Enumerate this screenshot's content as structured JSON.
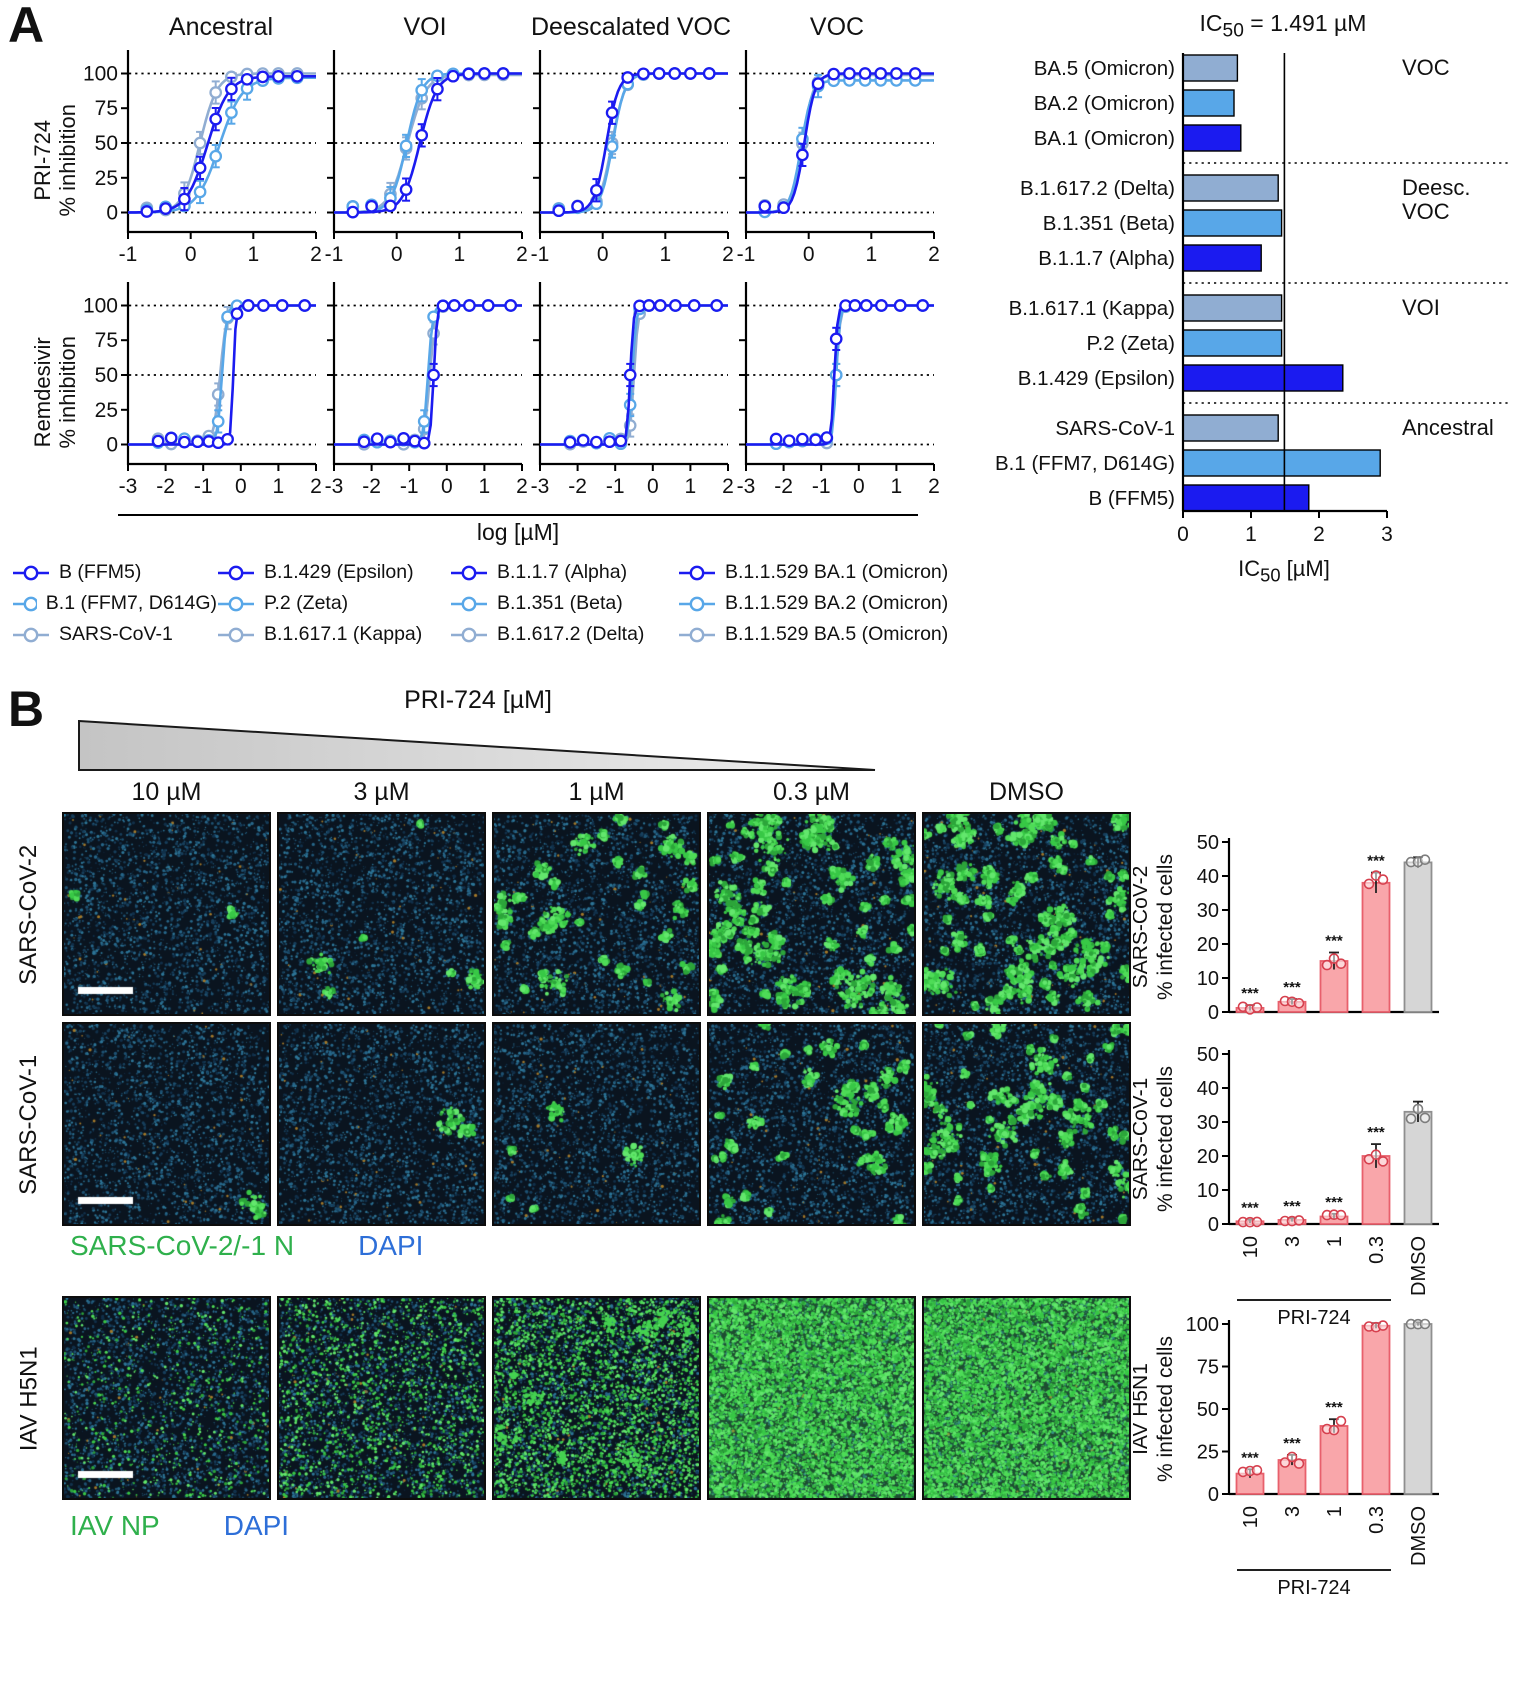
{
  "panelA": {
    "label": "A",
    "column_titles": [
      "Ancestral",
      "VOI",
      "Deescalated VOC",
      "VOC"
    ],
    "row_drugs": [
      "PRI-724",
      "Remdesivir"
    ],
    "row_ylabel": "% inhibition",
    "xaxis_label": "log [µM]",
    "series_colors": {
      "dark": "#1b1bf0",
      "mid": "#58a7e8",
      "gray": "#90add2"
    },
    "legend_columns": [
      [
        {
          "label": "B (FFM5)",
          "color": "dark"
        },
        {
          "label": "B.1 (FFM7, D614G)",
          "color": "mid"
        },
        {
          "label": "SARS-CoV-1",
          "color": "gray"
        }
      ],
      [
        {
          "label": "B.1.429 (Epsilon)",
          "color": "dark"
        },
        {
          "label": "P.2 (Zeta)",
          "color": "mid"
        },
        {
          "label": "B.1.617.1 (Kappa)",
          "color": "gray"
        }
      ],
      [
        {
          "label": "B.1.1.7 (Alpha)",
          "color": "dark"
        },
        {
          "label": "B.1.351 (Beta)",
          "color": "mid"
        },
        {
          "label": "B.1.617.2 (Delta)",
          "color": "gray"
        }
      ],
      [
        {
          "label": "B.1.1.529 BA.1 (Omicron)",
          "color": "dark"
        },
        {
          "label": "B.1.1.529 BA.2 (Omicron)",
          "color": "mid"
        },
        {
          "label": "B.1.1.529 BA.5 (Omicron)",
          "color": "gray"
        }
      ]
    ],
    "ic50_title": {
      "pre": "IC",
      "sub": "50",
      "post": " = 1.491 µM"
    },
    "ic50_xlabel": {
      "pre": "IC",
      "sub": "50",
      "post": " [µM]"
    }
  },
  "panelB": {
    "label": "B",
    "wedge_label": "PRI-724 [µM]",
    "concentration_labels": [
      "10 µM",
      "3 µM",
      "1 µM",
      "0.3 µM",
      "DMSO"
    ],
    "row_labels": [
      "SARS-CoV-2",
      "SARS-CoV-1",
      "IAV H5N1"
    ],
    "stain_captions": [
      {
        "stain": "SARS-CoV-2/-1 N",
        "stain_color": "#2fb04c",
        "counterstain": "DAPI",
        "counterstain_color": "#2e6fd8"
      },
      {
        "stain": "IAV NP",
        "stain_color": "#2fb04c",
        "counterstain": "DAPI",
        "counterstain_color": "#2e6fd8"
      }
    ],
    "bar_colors": {
      "treated_fill": "#f9a6aa",
      "treated_stroke": "#e8606c",
      "control_fill": "#d6d6d6",
      "control_stroke": "#8f8f8f"
    }
  },
  "microscopy": {
    "rows": [
      {
        "virus": "SARS-CoV-2",
        "mode": "colonies",
        "infection_levels": [
          0.015,
          0.05,
          0.28,
          0.62,
          0.68
        ]
      },
      {
        "virus": "SARS-CoV-1",
        "mode": "colonies",
        "infection_levels": [
          0.008,
          0.015,
          0.045,
          0.32,
          0.52
        ]
      },
      {
        "virus": "IAV H5N1",
        "mode": "speckle",
        "infection_levels": [
          0.1,
          0.22,
          0.45,
          0.95,
          1.0
        ]
      }
    ]
  },
  "chart_data": [
    {
      "type": "line",
      "drug": "PRI-724",
      "variant_group": "Ancestral",
      "ylabel": "% inhibition",
      "xlim": [
        -1,
        2
      ],
      "xticks": [
        -1,
        0,
        1,
        2
      ],
      "yticks": [
        0,
        25,
        50,
        75,
        100
      ],
      "ylim": [
        0,
        100
      ],
      "marker_x": [
        -0.7,
        -0.4,
        -0.1,
        0.15,
        0.4,
        0.65,
        0.9,
        1.15,
        1.4,
        1.7
      ],
      "series": [
        {
          "name": "B (FFM5)",
          "color": "dark",
          "logEC50": 0.27,
          "hill": 2.6,
          "top": 98
        },
        {
          "name": "B.1 (FFM7, D614G)",
          "color": "mid",
          "logEC50": 0.46,
          "hill": 2.4,
          "top": 97
        },
        {
          "name": "SARS-CoV-1",
          "color": "gray",
          "logEC50": 0.15,
          "hill": 3.2,
          "top": 100
        }
      ]
    },
    {
      "type": "line",
      "drug": "PRI-724",
      "variant_group": "VOI",
      "ylabel": "% inhibition",
      "xlim": [
        -1,
        2
      ],
      "xticks": [
        -1,
        0,
        1,
        2
      ],
      "yticks": [
        0,
        25,
        50,
        75,
        100
      ],
      "ylim": [
        0,
        100
      ],
      "marker_x": [
        -0.7,
        -0.4,
        -0.1,
        0.15,
        0.4,
        0.65,
        0.9,
        1.15,
        1.4,
        1.7
      ],
      "series": [
        {
          "name": "B.1.429 (Epsilon)",
          "color": "dark",
          "logEC50": 0.37,
          "hill": 3.2,
          "top": 100
        },
        {
          "name": "P.2 (Zeta)",
          "color": "mid",
          "logEC50": 0.16,
          "hill": 3.6,
          "top": 100
        },
        {
          "name": "B.1.617.1 (Kappa)",
          "color": "gray",
          "logEC50": 0.17,
          "hill": 3.0,
          "top": 99
        }
      ]
    },
    {
      "type": "line",
      "drug": "PRI-724",
      "variant_group": "Deescalated VOC",
      "ylabel": "% inhibition",
      "xlim": [
        -1,
        2
      ],
      "xticks": [
        -1,
        0,
        1,
        2
      ],
      "yticks": [
        0,
        25,
        50,
        75,
        100
      ],
      "ylim": [
        0,
        100
      ],
      "marker_x": [
        -0.7,
        -0.4,
        -0.1,
        0.15,
        0.4,
        0.65,
        0.9,
        1.15,
        1.4,
        1.7
      ],
      "series": [
        {
          "name": "B.1.1.7 (Alpha)",
          "color": "dark",
          "logEC50": 0.06,
          "hill": 4.5,
          "top": 100
        },
        {
          "name": "B.1.351 (Beta)",
          "color": "mid",
          "logEC50": 0.16,
          "hill": 4.5,
          "top": 100
        },
        {
          "name": "B.1.617.2 (Delta)",
          "color": "gray",
          "logEC50": 0.15,
          "hill": 4.2,
          "top": 100
        }
      ]
    },
    {
      "type": "line",
      "drug": "PRI-724",
      "variant_group": "VOC",
      "ylabel": "% inhibition",
      "xlim": [
        -1,
        2
      ],
      "xticks": [
        -1,
        0,
        1,
        2
      ],
      "yticks": [
        0,
        25,
        50,
        75,
        100
      ],
      "ylim": [
        0,
        100
      ],
      "marker_x": [
        -0.7,
        -0.4,
        -0.1,
        0.15,
        0.4,
        0.65,
        0.9,
        1.15,
        1.4,
        1.7
      ],
      "series": [
        {
          "name": "B.1.1.529 BA.1 (Omicron)",
          "color": "dark",
          "logEC50": -0.07,
          "hill": 5.0,
          "top": 100
        },
        {
          "name": "B.1.1.529 BA.2 (Omicron)",
          "color": "mid",
          "logEC50": -0.12,
          "hill": 5.0,
          "top": 95
        },
        {
          "name": "B.1.1.529 BA.5 (Omicron)",
          "color": "gray",
          "logEC50": -0.1,
          "hill": 5.0,
          "top": 99
        }
      ]
    },
    {
      "type": "line",
      "drug": "Remdesivir",
      "variant_group": "Ancestral",
      "ylabel": "% inhibition",
      "xlim": [
        -3,
        2
      ],
      "xticks": [
        -3,
        -2,
        -1,
        0,
        1,
        2
      ],
      "yticks": [
        0,
        25,
        50,
        75,
        100
      ],
      "ylim": [
        0,
        100
      ],
      "marker_x": [
        -2.2,
        -1.85,
        -1.5,
        -1.15,
        -0.85,
        -0.6,
        -0.35,
        -0.1,
        0.2,
        0.6,
        1.1,
        1.7
      ],
      "series": [
        {
          "name": "B (FFM5)",
          "color": "dark",
          "logEC50": -0.2,
          "hill": 12,
          "top": 100
        },
        {
          "name": "B.1 (FFM7, D614G)",
          "color": "mid",
          "logEC50": -0.5,
          "hill": 7,
          "top": 100
        },
        {
          "name": "SARS-CoV-1",
          "color": "gray",
          "logEC50": -0.55,
          "hill": 5,
          "top": 100
        }
      ]
    },
    {
      "type": "line",
      "drug": "Remdesivir",
      "variant_group": "VOI",
      "ylabel": "% inhibition",
      "xlim": [
        -3,
        2
      ],
      "xticks": [
        -3,
        -2,
        -1,
        0,
        1,
        2
      ],
      "yticks": [
        0,
        25,
        50,
        75,
        100
      ],
      "ylim": [
        0,
        100
      ],
      "marker_x": [
        -2.2,
        -1.85,
        -1.5,
        -1.15,
        -0.85,
        -0.6,
        -0.35,
        -0.1,
        0.2,
        0.6,
        1.1,
        1.7
      ],
      "series": [
        {
          "name": "B.1.429 (Epsilon)",
          "color": "dark",
          "logEC50": -0.35,
          "hill": 10,
          "top": 100
        },
        {
          "name": "P.2 (Zeta)",
          "color": "mid",
          "logEC50": -0.5,
          "hill": 7,
          "top": 100
        },
        {
          "name": "B.1.617.1 (Kappa)",
          "color": "gray",
          "logEC50": -0.45,
          "hill": 6,
          "top": 100
        }
      ]
    },
    {
      "type": "line",
      "drug": "Remdesivir",
      "variant_group": "Deescalated VOC",
      "ylabel": "% inhibition",
      "xlim": [
        -3,
        2
      ],
      "xticks": [
        -3,
        -2,
        -1,
        0,
        1,
        2
      ],
      "yticks": [
        0,
        25,
        50,
        75,
        100
      ],
      "ylim": [
        0,
        100
      ],
      "marker_x": [
        -2.2,
        -1.85,
        -1.5,
        -1.15,
        -0.85,
        -0.6,
        -0.35,
        -0.1,
        0.2,
        0.6,
        1.1,
        1.7
      ],
      "series": [
        {
          "name": "B.1.1.7 (Alpha)",
          "color": "dark",
          "logEC50": -0.6,
          "hill": 10,
          "top": 100
        },
        {
          "name": "B.1.351 (Beta)",
          "color": "mid",
          "logEC50": -0.55,
          "hill": 8,
          "top": 100
        },
        {
          "name": "B.1.617.2 (Delta)",
          "color": "gray",
          "logEC50": -0.5,
          "hill": 8,
          "top": 100
        }
      ]
    },
    {
      "type": "line",
      "drug": "Remdesivir",
      "variant_group": "VOC",
      "ylabel": "% inhibition",
      "xlim": [
        -3,
        2
      ],
      "xticks": [
        -3,
        -2,
        -1,
        0,
        1,
        2
      ],
      "yticks": [
        0,
        25,
        50,
        75,
        100
      ],
      "ylim": [
        0,
        100
      ],
      "marker_x": [
        -2.2,
        -1.85,
        -1.5,
        -1.15,
        -0.85,
        -0.6,
        -0.35,
        -0.1,
        0.2,
        0.6,
        1.1,
        1.7
      ],
      "series": [
        {
          "name": "B.1.1.529 BA.1 (Omicron)",
          "color": "dark",
          "logEC50": -0.65,
          "hill": 10,
          "top": 100
        },
        {
          "name": "B.1.1.529 BA.2 (Omicron)",
          "color": "mid",
          "logEC50": -0.6,
          "hill": 9,
          "top": 100
        },
        {
          "name": "B.1.1.529 BA.5 (Omicron)",
          "color": "gray",
          "logEC50": -0.6,
          "hill": 8,
          "top": 100
        }
      ]
    },
    {
      "type": "bar",
      "orientation": "horizontal",
      "title": "IC50 = 1.491 µM",
      "xlabel": "IC50 [µM]",
      "xlim": [
        0,
        3
      ],
      "xticks": [
        0,
        1,
        2,
        3
      ],
      "vline": 1.491,
      "groups": [
        {
          "label": "VOC",
          "bars": [
            {
              "name": "BA.5 (Omicron)",
              "value": 0.8,
              "color": "gray"
            },
            {
              "name": "BA.2 (Omicron)",
              "value": 0.75,
              "color": "mid"
            },
            {
              "name": "BA.1 (Omicron)",
              "value": 0.85,
              "color": "dark"
            }
          ]
        },
        {
          "label": "Deesc.\nVOC",
          "bars": [
            {
              "name": "B.1.617.2 (Delta)",
              "value": 1.4,
              "color": "gray"
            },
            {
              "name": "B.1.351 (Beta)",
              "value": 1.45,
              "color": "mid"
            },
            {
              "name": "B.1.1.7 (Alpha)",
              "value": 1.15,
              "color": "dark"
            }
          ]
        },
        {
          "label": "VOI",
          "bars": [
            {
              "name": "B.1.617.1 (Kappa)",
              "value": 1.45,
              "color": "gray"
            },
            {
              "name": "P.2 (Zeta)",
              "value": 1.45,
              "color": "mid"
            },
            {
              "name": "B.1.429 (Epsilon)",
              "value": 2.35,
              "color": "dark"
            }
          ]
        },
        {
          "label": "Ancestral",
          "bars": [
            {
              "name": "SARS-CoV-1",
              "value": 1.4,
              "color": "gray"
            },
            {
              "name": "B.1 (FFM7, D614G)",
              "value": 2.9,
              "color": "mid"
            },
            {
              "name": "B (FFM5)",
              "value": 1.85,
              "color": "dark"
            }
          ]
        }
      ]
    },
    {
      "type": "bar",
      "virus": "SARS-CoV-2",
      "ylabel": [
        "SARS-CoV-2",
        "% infected cells"
      ],
      "categories": [
        "10",
        "3",
        "1",
        "0.3",
        "DMSO"
      ],
      "values": [
        1.2,
        3,
        15,
        38,
        44
      ],
      "errors": [
        0.8,
        0.8,
        2.5,
        3,
        1.5
      ],
      "significance": [
        "***",
        "***",
        "***",
        "***",
        ""
      ],
      "ylim": [
        0,
        50
      ],
      "yticks": [
        0,
        10,
        20,
        30,
        40,
        50
      ],
      "control_index": 4,
      "show_xlabels": false,
      "group_label": "PRI-724"
    },
    {
      "type": "bar",
      "virus": "SARS-CoV-1",
      "ylabel": [
        "SARS-CoV-1",
        "% infected cells"
      ],
      "categories": [
        "10",
        "3",
        "1",
        "0.3",
        "DMSO"
      ],
      "values": [
        0.8,
        1.2,
        2.2,
        20,
        33
      ],
      "errors": [
        0.5,
        0.5,
        0.8,
        3.5,
        3
      ],
      "significance": [
        "***",
        "***",
        "***",
        "***",
        ""
      ],
      "ylim": [
        0,
        50
      ],
      "yticks": [
        0,
        10,
        20,
        30,
        40,
        50
      ],
      "control_index": 4,
      "show_xlabels": true,
      "group_label": "PRI-724"
    },
    {
      "type": "bar",
      "virus": "IAV H5N1",
      "ylabel": [
        "IAV H5N1",
        "% infected cells"
      ],
      "categories": [
        "10",
        "3",
        "1",
        "0.3",
        "DMSO"
      ],
      "values": [
        12,
        20,
        40,
        99,
        100
      ],
      "errors": [
        2.5,
        3,
        4,
        1.5,
        1
      ],
      "significance": [
        "***",
        "***",
        "***",
        "",
        ""
      ],
      "ylim": [
        0,
        100
      ],
      "yticks": [
        0,
        25,
        50,
        75,
        100
      ],
      "control_index": 4,
      "show_xlabels": true,
      "group_label": "PRI-724"
    }
  ]
}
